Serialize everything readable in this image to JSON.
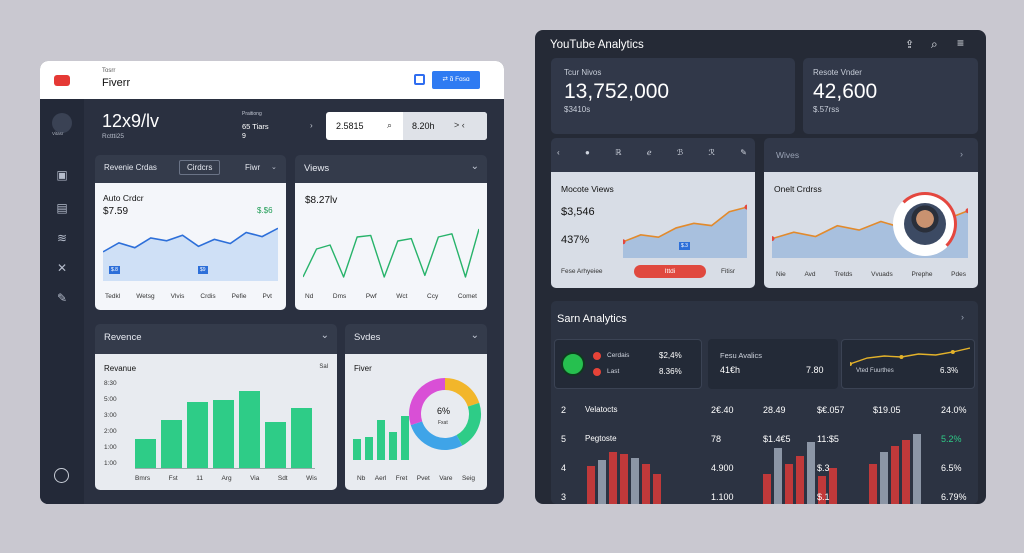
{
  "left": {
    "brand_small": "Tosrr",
    "brand": "Fiverr",
    "header_btn": "⇄ ɑ̃ Fɑsɑ",
    "avatar_label": "Vitasr",
    "headline_value": "12x9/lv",
    "headline_sub": "Rcttti25",
    "stat_a": "Praitiong",
    "stat_b": "65 Tiars",
    "stat_c": "9",
    "search_value": "2.5815",
    "search_result": "8.20h",
    "nav_symbols": "> ‹",
    "cards": {
      "revenue_orders": {
        "tab1": "Revenie Crdas",
        "tab2": "Cirdcrs",
        "tab3": "Fiwr",
        "title": "Auto Crdcr",
        "value": "$7.59",
        "accent": "$.$6",
        "marker1": "$.8",
        "marker2": "$9",
        "labels": [
          "Tedkl",
          "Wetsg",
          "Vlvis",
          "Crdis",
          "Pefie",
          "Pvt"
        ]
      },
      "views": {
        "title": "Views",
        "value": "$8.27lv",
        "labels": [
          "Nd",
          "Dms",
          "Pwf",
          "Wct",
          "Ccy",
          "Comet"
        ]
      },
      "revenue": {
        "title": "Revence",
        "subtitle": "Revanue",
        "corner": "Sal",
        "y_ticks": [
          "8:30",
          "5:00",
          "3:00",
          "2:00",
          "1:00",
          "1:00"
        ],
        "labels": [
          "Bmrs",
          "Fst",
          "11",
          "Arg",
          "Via",
          "Sdt",
          "Wis"
        ]
      },
      "sales": {
        "title": "Svdes",
        "subtitle": "Fiver",
        "donut_value": "6%",
        "donut_label": "Fxat",
        "labels": [
          "Nb",
          "Aerl",
          "Fret",
          "Pvet",
          "Vare",
          "Seig"
        ]
      }
    }
  },
  "right": {
    "title": "YouTube Analytics",
    "kpi1": {
      "label": "Tcur Nivos",
      "value": "13,752,000",
      "sub": "$3410s"
    },
    "kpi2": {
      "label": "Resote Vnder",
      "value": "42,600",
      "sub": "$.57rss"
    },
    "toolbar_icons": [
      "‹",
      "●",
      "ℝ",
      "ℯ",
      "ℬ",
      "ℛ",
      "✎"
    ],
    "card_monthly": {
      "title": "Mocote Views",
      "value": "$3,546",
      "pct": "437%",
      "marker": "$.3",
      "footer_left": "Fese Arhyeiee",
      "footer_btn": "Ittdi",
      "footer_right": "Fitisr"
    },
    "card_orders": {
      "title": "Wives",
      "subtitle": "Onelt Crdrss",
      "labels": [
        "Nie",
        "Avd",
        "Tretds",
        "Vvuads",
        "Prephe",
        "Pdes"
      ]
    },
    "sam": {
      "title": "Sarn Analytics",
      "row1_label": "Cerdais",
      "row1_val": "$2,4%",
      "row2_label": "Last",
      "row2_val": "8.36%",
      "mid_title": "Fesu Avalics",
      "mid_val": "41€h",
      "mid_val2": "7.80",
      "right_label": "Vted Fuurthes",
      "right_val": "6.3%"
    },
    "table": [
      [
        "2",
        "Velatocts",
        "2€.40",
        "28.49",
        "$€.057",
        "$19.05",
        "24.0%"
      ],
      [
        "5",
        "Pegtoste",
        "78",
        "$1.4€5",
        "11:$5",
        "",
        "5.2%"
      ],
      [
        "4",
        "",
        "4.900",
        "",
        "$.3",
        "",
        "6.5%"
      ],
      [
        "3",
        "",
        "1.100",
        "",
        "$.1",
        "",
        "6.79%"
      ]
    ]
  },
  "chart_data": [
    {
      "type": "area",
      "title": "Auto Crdcr",
      "values": [
        42,
        55,
        48,
        62,
        58,
        66,
        50,
        60,
        54,
        70,
        64,
        76
      ]
    },
    {
      "type": "line",
      "title": "Views",
      "values": [
        20,
        55,
        60,
        20,
        70,
        72,
        20,
        65,
        68,
        22,
        70,
        74,
        20,
        80
      ]
    },
    {
      "type": "bar",
      "title": "Revanue",
      "values": [
        30,
        50,
        68,
        70,
        80,
        48,
        62
      ]
    },
    {
      "type": "pie",
      "title": "Fiver",
      "values": [
        20,
        22,
        28,
        30
      ]
    },
    {
      "type": "bar",
      "title": "Fiver",
      "values": [
        18,
        20,
        35,
        24,
        38
      ]
    }
  ]
}
